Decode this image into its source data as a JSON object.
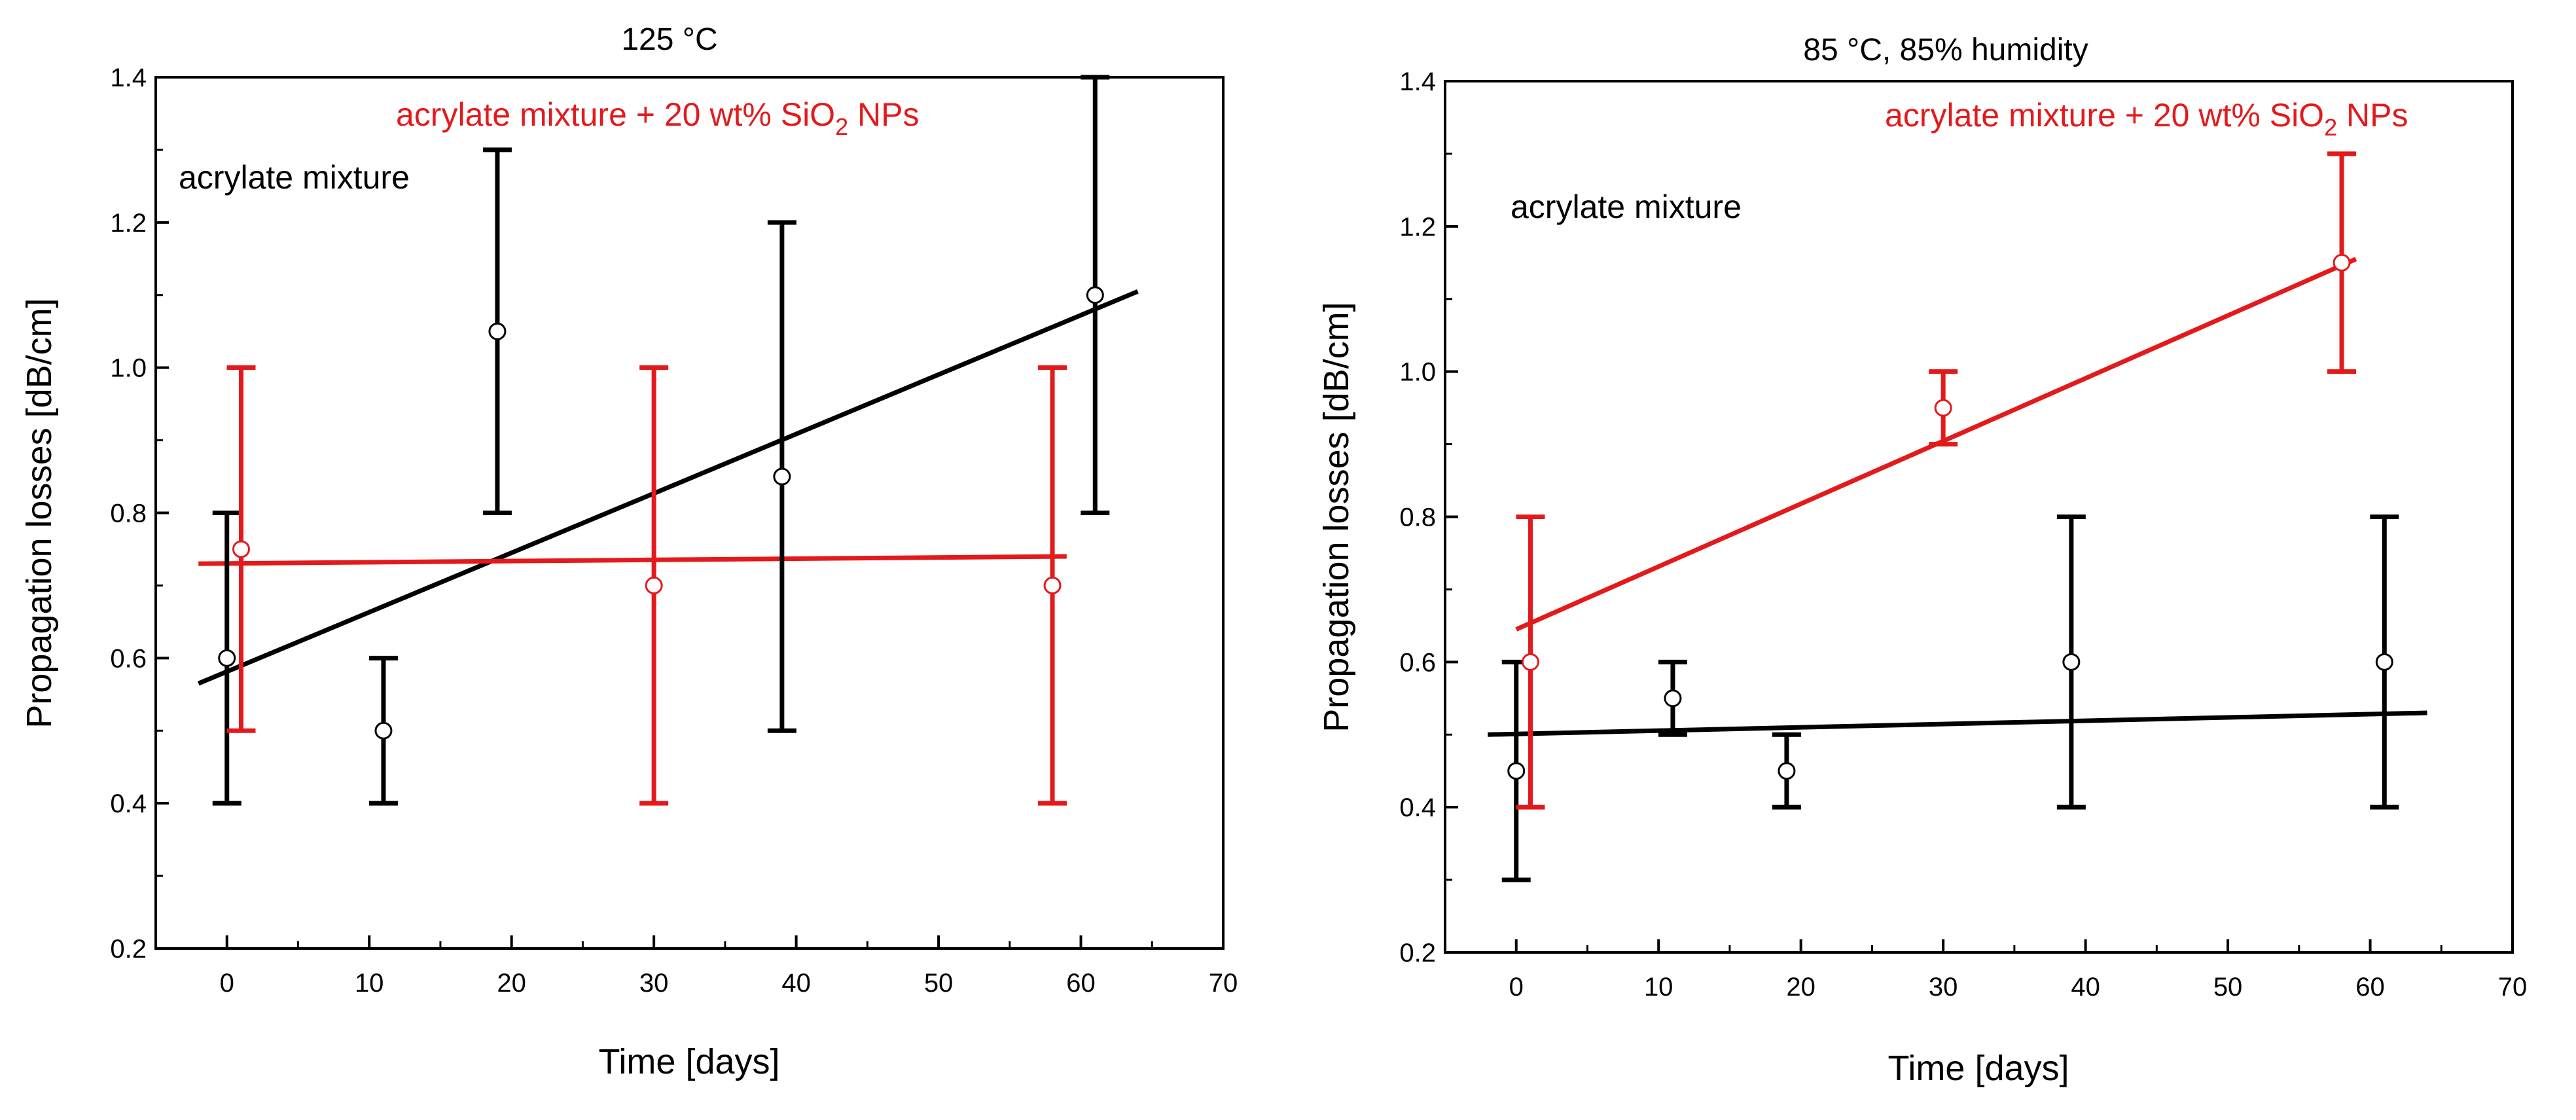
{
  "chart_data": [
    {
      "type": "scatter",
      "title": "125 °C",
      "xlabel": "Time [days]",
      "ylabel": "Propagation losses [dB/cm]",
      "xlim": [
        -5,
        70
      ],
      "ylim": [
        0.2,
        1.4
      ],
      "xticks": [
        "0",
        "10",
        "20",
        "30",
        "40",
        "50",
        "60",
        "70"
      ],
      "yticks": [
        "0.2",
        "0.4",
        "0.6",
        "0.8",
        "1.0",
        "1.2",
        "1.4"
      ],
      "series": [
        {
          "name": "acrylate mixture",
          "color": "#000000",
          "points": [
            {
              "x": 0,
              "y": 0.6,
              "yerr": 0.2
            },
            {
              "x": 11,
              "y": 0.5,
              "yerr": 0.1
            },
            {
              "x": 19,
              "y": 1.05,
              "yerr": 0.25
            },
            {
              "x": 39,
              "y": 0.85,
              "yerr": 0.35
            },
            {
              "x": 61,
              "y": 1.1,
              "yerr": 0.3
            }
          ],
          "fit": {
            "x": [
              -2,
              64
            ],
            "y": [
              0.565,
              1.105
            ]
          }
        },
        {
          "name": "acrylate mixture + 20 wt% SiO2 NPs",
          "color": "#e31a1c",
          "points": [
            {
              "x": 1,
              "y": 0.75,
              "yerr": 0.25
            },
            {
              "x": 30,
              "y": 0.7,
              "yerr": 0.3
            },
            {
              "x": 58,
              "y": 0.7,
              "yerr": 0.3
            }
          ],
          "fit": {
            "x": [
              -2,
              59
            ],
            "y": [
              0.73,
              0.74
            ]
          }
        }
      ],
      "labels": {
        "black": "acrylate mixture",
        "red_prefix": "acrylate mixture + 20 wt% SiO",
        "red_sub": "2",
        "red_suffix": " NPs"
      }
    },
    {
      "type": "scatter",
      "title": "85 °C, 85% humidity",
      "xlabel": "Time [days]",
      "ylabel": "Propagation losses [dB/cm]",
      "xlim": [
        -5,
        70
      ],
      "ylim": [
        0.2,
        1.4
      ],
      "xticks": [
        "0",
        "10",
        "20",
        "30",
        "40",
        "50",
        "60",
        "70"
      ],
      "yticks": [
        "0.2",
        "0.4",
        "0.6",
        "0.8",
        "1.0",
        "1.2",
        "1.4"
      ],
      "series": [
        {
          "name": "acrylate mixture",
          "color": "#000000",
          "points": [
            {
              "x": 0,
              "y": 0.45,
              "yerr": 0.15
            },
            {
              "x": 11,
              "y": 0.55,
              "yerr": 0.05
            },
            {
              "x": 19,
              "y": 0.45,
              "yerr": 0.05
            },
            {
              "x": 39,
              "y": 0.6,
              "yerr": 0.2
            },
            {
              "x": 61,
              "y": 0.6,
              "yerr": 0.2
            }
          ],
          "fit": {
            "x": [
              -2,
              64
            ],
            "y": [
              0.5,
              0.53
            ]
          }
        },
        {
          "name": "acrylate mixture + 20 wt% SiO2 NPs",
          "color": "#e31a1c",
          "points": [
            {
              "x": 1,
              "y": 0.6,
              "yerr": 0.2
            },
            {
              "x": 30,
              "y": 0.95,
              "yerr": 0.05
            },
            {
              "x": 58,
              "y": 1.15,
              "yerr": 0.15
            }
          ],
          "fit": {
            "x": [
              0,
              59
            ],
            "y": [
              0.645,
              1.155
            ]
          }
        }
      ],
      "labels": {
        "black": "acrylate mixture",
        "red_prefix": "acrylate mixture + 20 wt% SiO",
        "red_sub": "2",
        "red_suffix": " NPs"
      }
    }
  ]
}
